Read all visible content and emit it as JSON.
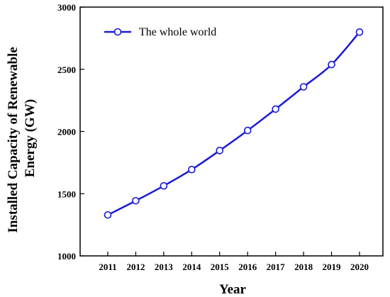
{
  "chart_data": {
    "type": "line",
    "title": "",
    "xlabel": "Year",
    "ylabel_lines": [
      "Installed Capacity of Renewable",
      "Energy  (GW)"
    ],
    "categories": [
      "2011",
      "2012",
      "2013",
      "2014",
      "2015",
      "2016",
      "2017",
      "2018",
      "2019",
      "2020"
    ],
    "series": [
      {
        "name": "The whole world",
        "values": [
          1329,
          1443,
          1563,
          1694,
          1847,
          2008,
          2180,
          2359,
          2538,
          2799
        ],
        "color": "#1a1ad6",
        "marker": "open-circle"
      }
    ],
    "ylim": [
      1000,
      3000
    ],
    "yticks": [
      1000,
      1500,
      2000,
      2500,
      3000
    ],
    "grid": false,
    "legend": "top-left"
  }
}
